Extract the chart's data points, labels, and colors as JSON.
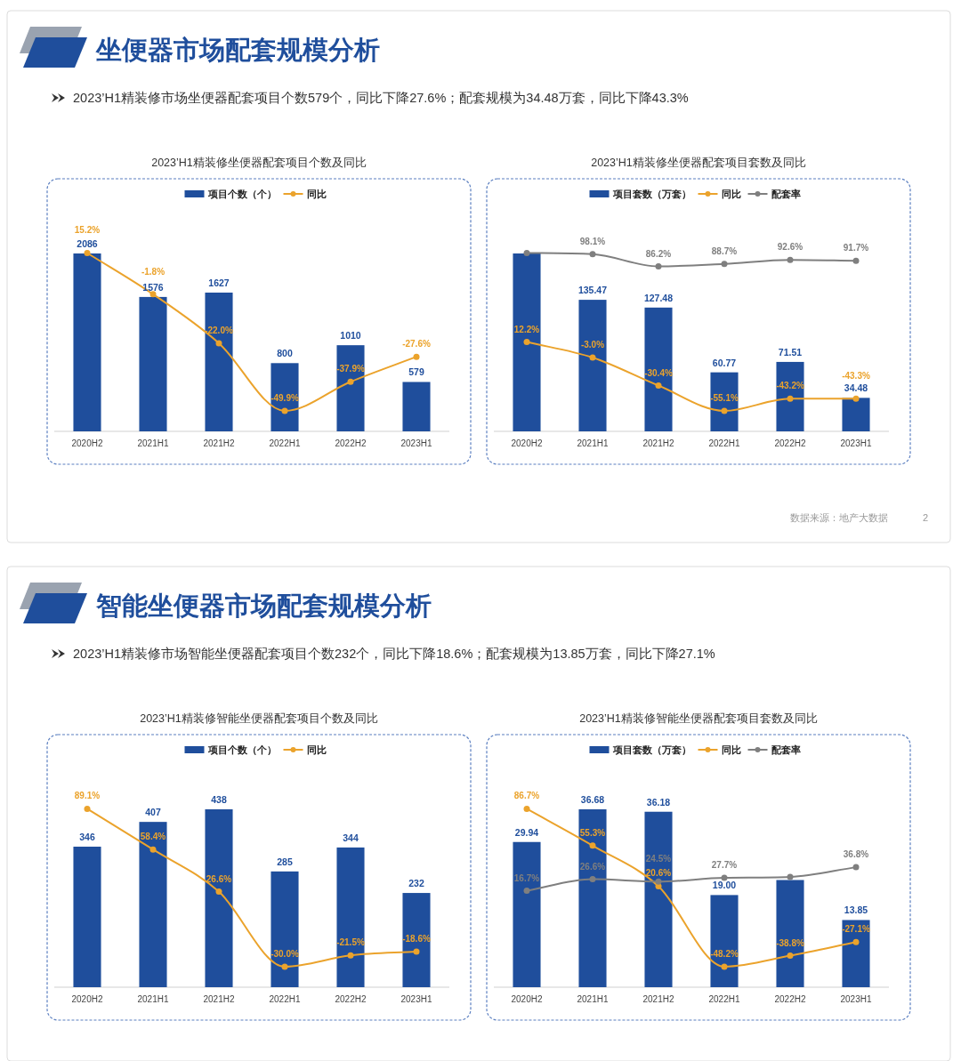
{
  "chart_data": [
    {
      "type": "other",
      "title": "坐便器市场配套规模分析",
      "subtitle": "2023’H1精装修市场坐便器配套项目个数579个，同比下降27.6%；配套规模为34.48万套，同比下降43.3%",
      "annotations": [
        "数据来源：地产大数据",
        "2"
      ]
    },
    {
      "type": "bar",
      "title": "2023’H1精装修坐便器配套项目个数及同比",
      "categories": [
        "2020H2",
        "2021H1",
        "2021H2",
        "2022H1",
        "2022H2",
        "2023H1"
      ],
      "legend": "top",
      "tick_labels": "x",
      "marker": "circle",
      "series": [
        {
          "name": "项目个数（个）",
          "type": "bar",
          "color": "#1f4e9c",
          "values": [
            2086,
            1576,
            1627,
            800,
            1010,
            579
          ],
          "value_labels": [
            "2086",
            "1576",
            "1627",
            "800",
            "1010",
            "579"
          ]
        },
        {
          "name": "同比",
          "type": "line",
          "axis": "y2",
          "color": "#eba32c",
          "values": [
            15.2,
            -1.8,
            -22.0,
            -49.9,
            -37.9,
            -27.6
          ],
          "value_labels": [
            "15.2%",
            "-1.8%",
            "-22.0%",
            "-49.9%",
            "-37.9%",
            "-27.6%"
          ]
        }
      ]
    },
    {
      "type": "bar",
      "title": "2023’H1精装修坐便器配套项目套数及同比",
      "categories": [
        "2020H2",
        "2021H1",
        "2021H2",
        "2022H1",
        "2022H2",
        "2023H1"
      ],
      "legend": "top",
      "tick_labels": "x",
      "marker": "circle",
      "series": [
        {
          "name": "项目套数（万套）",
          "type": "bar",
          "color": "#1f4e9c",
          "values": [
            183.2,
            135.47,
            127.48,
            60.77,
            71.51,
            34.48
          ],
          "value_labels": [
            null,
            "135.47",
            "127.48",
            "60.77",
            "71.51",
            "34.48"
          ]
        },
        {
          "name": "同比",
          "type": "line",
          "axis": "y2",
          "color": "#eba32c",
          "values": [
            12.2,
            -3.0,
            -30.4,
            -55.1,
            -43.2,
            -43.3
          ],
          "value_labels": [
            "12.2%",
            "-3.0%",
            "-30.4%",
            "-55.1%",
            "-43.2%",
            "-43.3%"
          ]
        },
        {
          "name": "配套率",
          "type": "line",
          "axis": "y2",
          "color": "#7f7f7f",
          "values": [
            99.3,
            98.1,
            86.2,
            88.7,
            92.6,
            91.7
          ],
          "value_labels": [
            null,
            "98.1%",
            "86.2%",
            "88.7%",
            "92.6%",
            "91.7%"
          ]
        }
      ]
    },
    {
      "type": "other",
      "title": "智能坐便器市场配套规模分析",
      "subtitle": "2023’H1精装修市场智能坐便器配套项目个数232个，同比下降18.6%；配套规模为13.85万套，同比下降27.1%"
    },
    {
      "type": "bar",
      "title": "2023’H1精装修智能坐便器配套项目个数及同比",
      "categories": [
        "2020H2",
        "2021H1",
        "2021H2",
        "2022H1",
        "2022H2",
        "2023H1"
      ],
      "legend": "top",
      "tick_labels": "x",
      "marker": "circle",
      "series": [
        {
          "name": "项目个数（个）",
          "type": "bar",
          "color": "#1f4e9c",
          "values": [
            346,
            407,
            438,
            285,
            344,
            232
          ],
          "value_labels": [
            "346",
            "407",
            "438",
            "285",
            "344",
            "232"
          ]
        },
        {
          "name": "同比",
          "type": "line",
          "axis": "y2",
          "color": "#eba32c",
          "values": [
            89.1,
            58.4,
            26.6,
            -30.0,
            -21.5,
            -18.6
          ],
          "value_labels": [
            "89.1%",
            "58.4%",
            "26.6%",
            "-30.0%",
            "-21.5%",
            "-18.6%"
          ]
        }
      ]
    },
    {
      "type": "bar",
      "title": "2023’H1精装修智能坐便器配套项目套数及同比",
      "categories": [
        "2020H2",
        "2021H1",
        "2021H2",
        "2022H1",
        "2022H2",
        "2023H1"
      ],
      "legend": "top",
      "tick_labels": "x",
      "marker": "circle",
      "series": [
        {
          "name": "项目套数（万套）",
          "type": "bar",
          "color": "#1f4e9c",
          "values": [
            29.94,
            36.68,
            36.18,
            19.0,
            22.1,
            13.85
          ],
          "value_labels": [
            "29.94",
            "36.68",
            "36.18",
            "19.00",
            null,
            "13.85"
          ]
        },
        {
          "name": "同比",
          "type": "line",
          "axis": "y2",
          "color": "#eba32c",
          "values": [
            86.7,
            55.3,
            20.6,
            -48.2,
            -38.8,
            -27.1
          ],
          "value_labels": [
            "86.7%",
            "55.3%",
            "20.6%",
            "-48.2%",
            "-38.8%",
            "-27.1%"
          ]
        },
        {
          "name": "配套率",
          "type": "line",
          "axis": "y2",
          "color": "#7f7f7f",
          "values": [
            16.7,
            26.6,
            24.5,
            27.7,
            28.5,
            36.8
          ],
          "value_labels": [
            "16.7%",
            "26.6%",
            "24.5%",
            "27.7%",
            null,
            "36.8%"
          ]
        }
      ]
    }
  ]
}
